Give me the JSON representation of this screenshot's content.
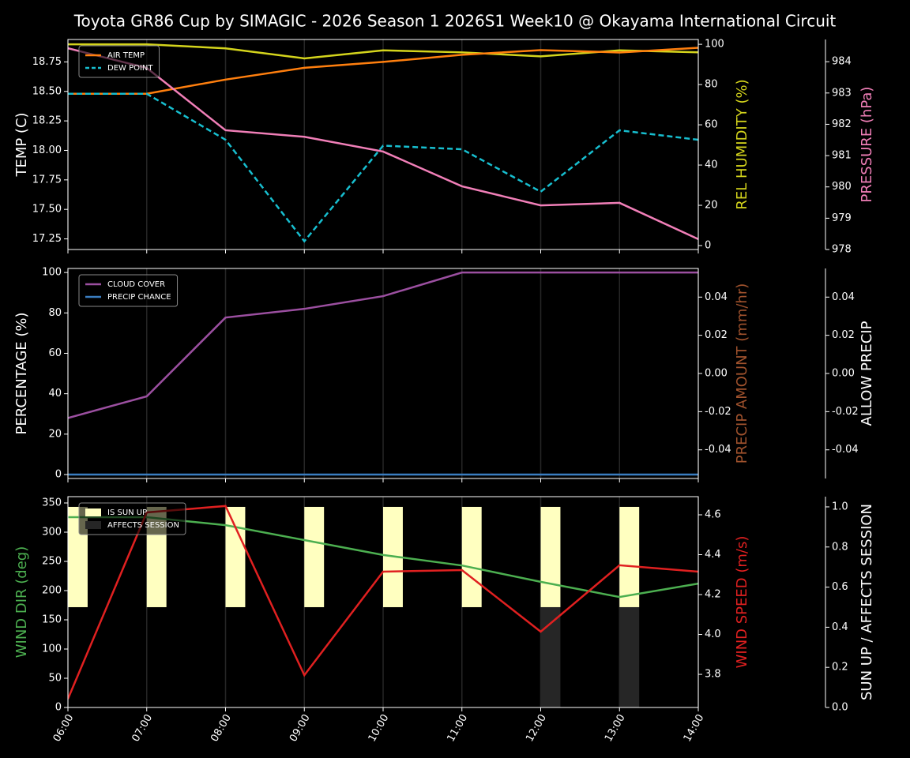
{
  "chart_data": {
    "type": "line",
    "title": "Toyota GR86 Cup by SIMAGIC - 2026 Season 1 2026S1 Week10 @ Okayama International Circuit",
    "categories": [
      "06:00",
      "07:00",
      "08:00",
      "09:00",
      "10:00",
      "11:00",
      "12:00",
      "13:00",
      "14:00"
    ],
    "panels": [
      {
        "ylabel": "TEMP (C)",
        "ylabel_color": "#ffffff",
        "ylim": [
          17.16,
          18.94
        ],
        "yticks": [
          17.25,
          {
            "value": 17.5,
            "label": "17.50"
          },
          17.75,
          {
            "value": 18.0,
            "label": "18.00"
          },
          18.25,
          {
            "value": 18.5,
            "label": "18.50"
          },
          18.75
        ],
        "y2label": "REL HUMIDITY (%)",
        "y2label_color": "#d4d41c",
        "y2lim": [
          -1.96,
          102.4
        ],
        "y2ticks": [
          0,
          20,
          40,
          60,
          80,
          100
        ],
        "y3label": "PRESSURE (hPa)",
        "y3label_color": "#f17fb8",
        "y3lim": [
          978,
          984.71
        ],
        "y3ticks": [
          978,
          979,
          980,
          981,
          982,
          983,
          984
        ],
        "series": [
          {
            "color": "#d4d41c",
            "axis": "y2",
            "values": [
              100,
              100,
              98,
              93,
              97,
              96,
              94,
              97,
              96
            ]
          },
          {
            "name": "AIR TEMP",
            "color": "#ff7f0e",
            "axis": "y",
            "values": [
              18.48,
              18.48,
              18.6,
              18.7,
              18.75,
              18.81,
              18.85,
              18.83,
              18.87
            ]
          },
          {
            "name": "DEW POINT",
            "color": "#17becf",
            "axis": "y",
            "dash": true,
            "values": [
              18.48,
              18.48,
              18.09,
              17.23,
              18.04,
              18.01,
              17.65,
              18.17,
              18.09
            ]
          },
          {
            "color": "#f17fb8",
            "axis": "y3",
            "values": [
              984.43,
              983.8,
              981.81,
              981.6,
              981.13,
              980.02,
              979.41,
              979.49,
              978.33
            ]
          }
        ]
      },
      {
        "ylabel": "PERCENTAGE (%)",
        "ylabel_color": "#ffffff",
        "ylim": [
          -1.95,
          102
        ],
        "yticks": [
          0,
          20,
          40,
          60,
          80,
          100
        ],
        "y2label": "PRECIP AMOUNT (mm/hr)",
        "y2label_color": "#a0522d",
        "y2lim": [
          -0.055,
          0.055
        ],
        "y2ticks": [
          -0.04,
          -0.02,
          {
            "value": 0,
            "label": "0.00"
          },
          0.02,
          0.04
        ],
        "y3label": "ALLOW PRECIP",
        "y3label_color": "#ffffff",
        "y3lim": [
          -0.055,
          0.055
        ],
        "y3ticks": [
          -0.04,
          -0.02,
          {
            "value": 0,
            "label": "0.00"
          },
          0.02,
          0.04
        ],
        "series": [
          {
            "name": "CLOUD COVER",
            "color": "#9b4fa0",
            "axis": "y",
            "values": [
              28,
              38.7,
              77.7,
              82,
              88.3,
              100,
              100,
              100,
              100
            ]
          },
          {
            "name": "PRECIP CHANCE",
            "color": "#3a7dc0",
            "axis": "y",
            "values": [
              0,
              0,
              0,
              0,
              0,
              0,
              0,
              0,
              0
            ]
          }
        ]
      },
      {
        "ylabel": "WIND DIR (deg)",
        "ylabel_color": "#4caf50",
        "ylim": [
          0,
          360.8
        ],
        "yticks": [
          0,
          50,
          100,
          150,
          200,
          250,
          300,
          350
        ],
        "y2label": "WIND SPEED (m/s)",
        "y2label_color": "#e02020",
        "y2lim": [
          3.634,
          4.691
        ],
        "y2ticks": [
          3.8,
          {
            "value": 4.0,
            "label": "4.0"
          },
          4.2,
          4.4,
          4.6
        ],
        "y3label": "SUN UP / AFFECTS SESSION",
        "y3label_color": "#ffffff",
        "y3lim": [
          0,
          1.051
        ],
        "y3ticks": [
          {
            "value": 0,
            "label": "0.0"
          },
          0.2,
          0.4,
          0.6,
          0.8,
          {
            "value": 1,
            "label": "1.0"
          }
        ],
        "series": [
          {
            "name": "IS SUN UP",
            "type": "bar",
            "color": "#ffffc0",
            "axis": "y3",
            "bottom": 0.5,
            "values": [
              0.5,
              0.5,
              0.5,
              0.5,
              0.5,
              0.5,
              0.5,
              0.5,
              null
            ]
          },
          {
            "name": "AFFECTS SESSION",
            "type": "bar",
            "color": "#262626",
            "axis": "y3",
            "values": [
              0,
              0,
              0,
              0,
              0,
              0,
              0.5,
              0.5,
              null
            ]
          },
          {
            "color": "#4caf50",
            "axis": "y",
            "values": [
              325.7,
              325.7,
              312,
              286.5,
              261,
              243,
              215,
              189,
              212
            ]
          },
          {
            "color": "#e02020",
            "axis": "y2",
            "values": [
              3.677,
              4.612,
              4.644,
              3.796,
              4.315,
              4.323,
              4.014,
              4.347,
              4.315
            ]
          }
        ]
      }
    ]
  }
}
